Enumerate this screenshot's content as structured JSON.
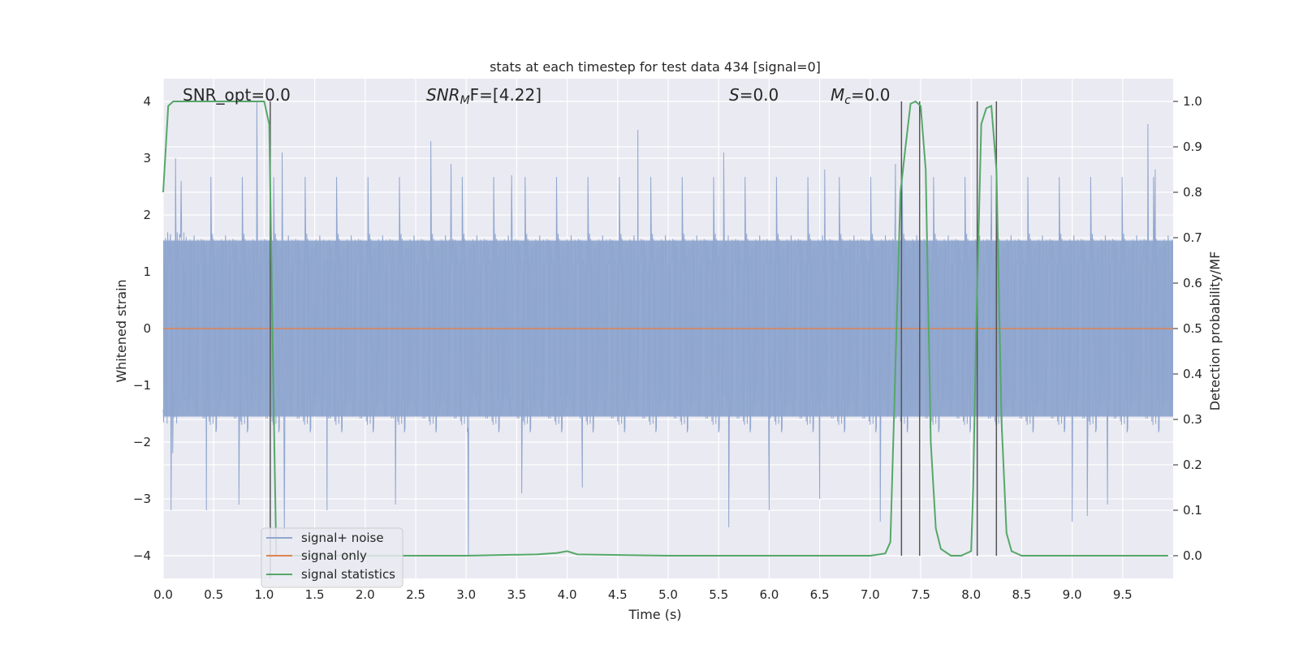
{
  "chart_data": {
    "type": "line",
    "title": "stats at each timestep for test data 434 [signal=0]",
    "xlabel": "Time (s)",
    "ylabel": "Whitened strain",
    "y2label": "Detection probability/MF",
    "xlim": [
      0,
      10
    ],
    "ylim": [
      -4.4,
      4.4
    ],
    "y2lim": [
      -0.05,
      1.05
    ],
    "xticks": [
      "0.0",
      "0.5",
      "1.0",
      "1.5",
      "2.0",
      "2.5",
      "3.0",
      "3.5",
      "4.0",
      "4.5",
      "5.0",
      "5.5",
      "6.0",
      "6.5",
      "7.0",
      "7.5",
      "8.0",
      "8.5",
      "9.0",
      "9.5"
    ],
    "yticks": [
      "4",
      "3",
      "2",
      "1",
      "0",
      "−1",
      "−2",
      "−3",
      "−4"
    ],
    "y2ticks": [
      "1.0",
      "0.9",
      "0.8",
      "0.7",
      "0.6",
      "0.5",
      "0.4",
      "0.3",
      "0.2",
      "0.1",
      "0.0"
    ],
    "grid": true,
    "legend_position": "lower-left",
    "annotations": {
      "snr_opt": "SNR_opt=0.0",
      "snr_mf_sym": "SNR",
      "snr_mf_sub": "M",
      "snr_mf_rest": "F=[4.22]",
      "s_sym": "S",
      "s_rest": "=0.0",
      "mc_sym": "M",
      "mc_sub": "c",
      "mc_rest": "=0.0"
    },
    "series": [
      {
        "name": "signal+ noise",
        "color": "#8fa6cf",
        "description_x_range": [
          0,
          10
        ],
        "typical_amplitude": 1.5,
        "peaks": [
          {
            "x": 0.12,
            "y": 3.0
          },
          {
            "x": 0.18,
            "y": 2.6
          },
          {
            "x": 0.93,
            "y": 4.0
          },
          {
            "x": 1.18,
            "y": 3.1
          },
          {
            "x": 2.3,
            "y": 2.6
          },
          {
            "x": 2.65,
            "y": 3.3
          },
          {
            "x": 2.85,
            "y": 2.9
          },
          {
            "x": 3.45,
            "y": 2.7
          },
          {
            "x": 4.7,
            "y": 3.5
          },
          {
            "x": 5.55,
            "y": 3.1
          },
          {
            "x": 6.55,
            "y": 2.8
          },
          {
            "x": 7.25,
            "y": 2.9
          },
          {
            "x": 8.2,
            "y": 2.7
          },
          {
            "x": 9.75,
            "y": 3.6
          },
          {
            "x": 9.82,
            "y": 2.8
          },
          {
            "x": 0.08,
            "y": -3.2
          },
          {
            "x": 0.43,
            "y": -3.2
          },
          {
            "x": 0.75,
            "y": -3.1
          },
          {
            "x": 1.2,
            "y": -3.6
          },
          {
            "x": 1.62,
            "y": -3.2
          },
          {
            "x": 2.3,
            "y": -3.1
          },
          {
            "x": 3.02,
            "y": -4.0
          },
          {
            "x": 3.55,
            "y": -2.9
          },
          {
            "x": 5.6,
            "y": -3.5
          },
          {
            "x": 6.0,
            "y": -3.2
          },
          {
            "x": 7.1,
            "y": -3.4
          },
          {
            "x": 9.15,
            "y": -3.3
          },
          {
            "x": 9.35,
            "y": -3.1
          },
          {
            "x": 9.0,
            "y": -3.4
          },
          {
            "x": 6.5,
            "y": -3.0
          },
          {
            "x": 4.15,
            "y": -2.8
          }
        ]
      },
      {
        "name": "signal only",
        "color": "#dd8452",
        "x": [
          0,
          10
        ],
        "y": [
          0,
          0
        ]
      },
      {
        "name": "signal statistics",
        "color": "#55a868",
        "axis": "right",
        "x": [
          0.0,
          0.05,
          0.1,
          0.9,
          1.0,
          1.05,
          1.1,
          1.12,
          2.0,
          3.0,
          3.7,
          3.9,
          4.0,
          4.1,
          5.0,
          7.0,
          7.15,
          7.2,
          7.3,
          7.35,
          7.4,
          7.45,
          7.5,
          7.55,
          7.6,
          7.65,
          7.7,
          7.8,
          7.9,
          8.0,
          8.02,
          8.05,
          8.1,
          8.15,
          8.2,
          8.25,
          8.3,
          8.35,
          8.4,
          8.5,
          9.0,
          9.95
        ],
        "y": [
          0.8,
          0.99,
          1.0,
          1.0,
          1.0,
          0.95,
          0.25,
          0.0,
          0.0,
          0.0,
          0.003,
          0.006,
          0.01,
          0.003,
          0.0,
          0.0,
          0.005,
          0.03,
          0.8,
          0.9,
          0.995,
          1.0,
          0.99,
          0.85,
          0.25,
          0.06,
          0.015,
          0.0,
          0.0,
          0.01,
          0.15,
          0.5,
          0.95,
          0.985,
          0.99,
          0.85,
          0.3,
          0.05,
          0.01,
          0.0,
          0.0,
          0.0
        ]
      }
    ],
    "vertical_lines": [
      {
        "x": 1.06,
        "y_top": 4.0,
        "y_bottom": -0.05
      },
      {
        "x": 7.31,
        "y_top": 4.0,
        "y_bottom": -4.0
      },
      {
        "x": 7.49,
        "y_top": 4.0,
        "y_bottom": -4.0
      },
      {
        "x": 8.06,
        "y_top": 4.0,
        "y_bottom": -4.0
      },
      {
        "x": 8.25,
        "y_top": 4.0,
        "y_bottom": -4.0
      }
    ]
  }
}
